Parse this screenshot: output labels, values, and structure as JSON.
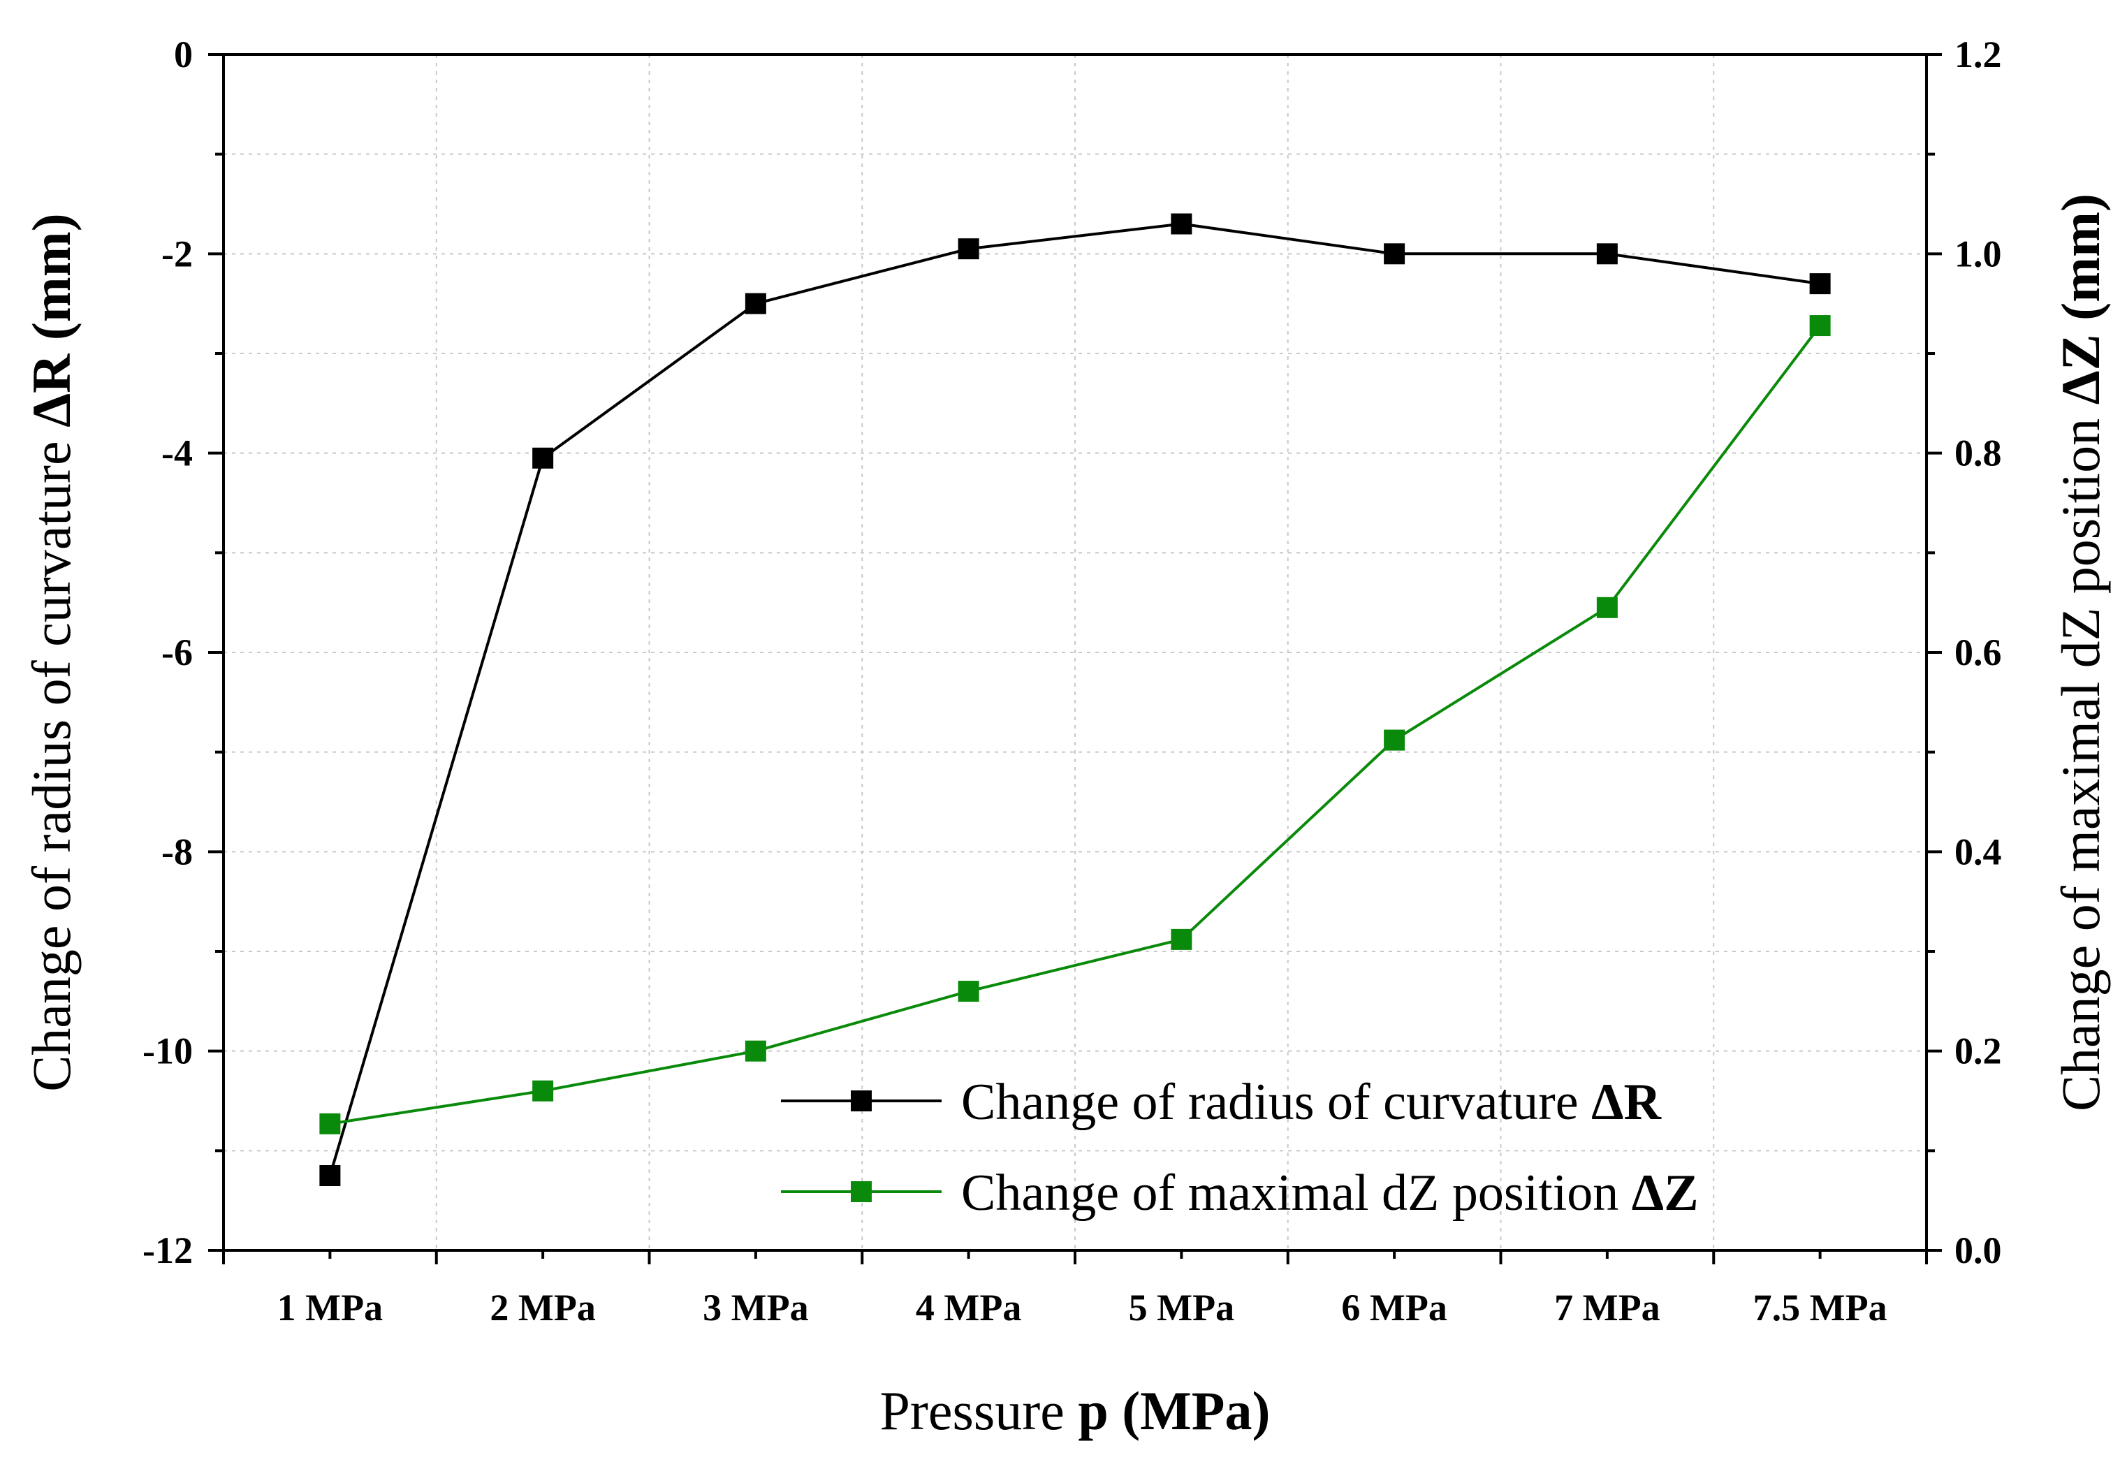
{
  "chart_data": {
    "type": "line",
    "categories": [
      "1 MPa",
      "2 MPa",
      "3 MPa",
      "4 MPa",
      "5 MPa",
      "6 MPa",
      "7 MPa",
      "7.5 MPa"
    ],
    "xlabel": {
      "prefix": "Pressure ",
      "bold": "p (MPa)"
    },
    "ylabel_left": {
      "prefix": "Change of radius of curvature ",
      "bold": "ΔR (mm)"
    },
    "ylabel_right": {
      "prefix": "Change of maximal dZ position ",
      "bold": "ΔZ (mm)"
    },
    "ylim_left": [
      -12,
      0
    ],
    "ylim_right": [
      0.0,
      1.2
    ],
    "yticks_left": [
      "0",
      "-2",
      "-4",
      "-6",
      "-8",
      "-10",
      "-12"
    ],
    "yticks_right": [
      "0.0",
      "0.2",
      "0.4",
      "0.6",
      "0.8",
      "1.0",
      "1.2"
    ],
    "grid": true,
    "legend_position": "bottom-right",
    "series": [
      {
        "name_prefix": "Change of radius of curvature ",
        "name_bold": "ΔR",
        "axis": "left",
        "color": "#000000",
        "marker": "square",
        "values": [
          -11.25,
          -4.05,
          -2.5,
          -1.95,
          -1.7,
          -2.0,
          -2.0,
          -2.3
        ]
      },
      {
        "name_prefix": "Change of maximal dZ position ",
        "name_bold": "ΔZ",
        "axis": "right",
        "color": "#0a8a0a",
        "marker": "square",
        "values": [
          0.127,
          0.16,
          0.2,
          0.26,
          0.312,
          0.512,
          0.645,
          0.928
        ]
      }
    ]
  }
}
